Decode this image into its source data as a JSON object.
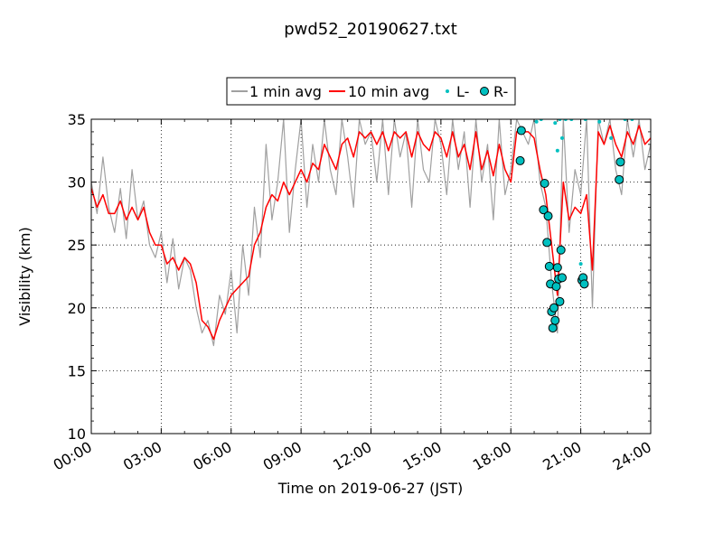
{
  "chart_data": {
    "type": "line",
    "title": "pwd52_20190627.txt",
    "xlabel": "Time on 2019-06-27 (JST)",
    "ylabel": "Visibility (km)",
    "xlim": [
      0,
      24
    ],
    "ylim": [
      10,
      35
    ],
    "x_ticks": [
      "00:00",
      "03:00",
      "06:00",
      "09:00",
      "12:00",
      "15:00",
      "18:00",
      "21:00",
      "24:00"
    ],
    "y_ticks": [
      "10",
      "15",
      "20",
      "25",
      "30",
      "35"
    ],
    "x_unit": "hours",
    "grid": true,
    "legend_position": "top-center",
    "legend": [
      "1 min avg",
      "10 min avg",
      "L-",
      "R-"
    ],
    "series": [
      {
        "name": "1 min avg",
        "color": "#a0a0a0",
        "kind": "line",
        "x": [
          0,
          0.25,
          0.5,
          0.75,
          1,
          1.25,
          1.5,
          1.75,
          2,
          2.25,
          2.5,
          2.75,
          3,
          3.25,
          3.5,
          3.75,
          4,
          4.25,
          4.5,
          4.75,
          5,
          5.25,
          5.5,
          5.75,
          6,
          6.25,
          6.5,
          6.75,
          7,
          7.25,
          7.5,
          7.75,
          8,
          8.25,
          8.5,
          8.75,
          9,
          9.25,
          9.5,
          9.75,
          10,
          10.25,
          10.5,
          10.75,
          11,
          11.25,
          11.5,
          11.75,
          12,
          12.25,
          12.5,
          12.75,
          13,
          13.25,
          13.5,
          13.75,
          14,
          14.25,
          14.5,
          14.75,
          15,
          15.25,
          15.5,
          15.75,
          16,
          16.25,
          16.5,
          16.75,
          17,
          17.25,
          17.5,
          17.75,
          18,
          18.25,
          18.5,
          18.75,
          19,
          19.25,
          19.5,
          19.75,
          20,
          20.25,
          20.5,
          20.75,
          21,
          21.25,
          21.5,
          21.75,
          22,
          22.25,
          22.5,
          22.75,
          23,
          23.25,
          23.5,
          23.75,
          24
        ],
        "values": [
          30,
          27.5,
          32,
          28,
          26,
          29.5,
          25.5,
          31,
          27,
          28.5,
          25,
          24,
          26,
          22,
          25.5,
          21.5,
          24,
          23,
          20,
          18,
          19,
          17,
          21,
          19.5,
          23,
          18,
          25,
          21,
          28,
          24,
          33,
          27,
          30,
          35,
          26,
          31,
          35,
          28,
          33,
          30,
          35,
          31,
          29,
          35,
          32,
          28,
          35,
          33,
          34,
          30,
          35,
          29,
          35,
          32,
          34,
          28,
          35,
          31,
          30,
          35,
          33,
          29,
          35,
          31,
          34,
          28,
          35,
          30,
          33,
          27,
          35,
          29,
          31,
          35,
          34,
          33,
          35,
          30,
          28,
          22,
          18,
          35,
          26,
          31,
          29,
          35,
          20,
          35,
          33,
          35,
          31,
          29,
          35,
          32,
          35,
          31,
          33
        ]
      },
      {
        "name": "10 min avg",
        "color": "#ff0000",
        "kind": "line",
        "x": [
          0,
          0.25,
          0.5,
          0.75,
          1,
          1.25,
          1.5,
          1.75,
          2,
          2.25,
          2.5,
          2.75,
          3,
          3.25,
          3.5,
          3.75,
          4,
          4.25,
          4.5,
          4.75,
          5,
          5.25,
          5.5,
          5.75,
          6,
          6.25,
          6.5,
          6.75,
          7,
          7.25,
          7.5,
          7.75,
          8,
          8.25,
          8.5,
          8.75,
          9,
          9.25,
          9.5,
          9.75,
          10,
          10.25,
          10.5,
          10.75,
          11,
          11.25,
          11.5,
          11.75,
          12,
          12.25,
          12.5,
          12.75,
          13,
          13.25,
          13.5,
          13.75,
          14,
          14.25,
          14.5,
          14.75,
          15,
          15.25,
          15.5,
          15.75,
          16,
          16.25,
          16.5,
          16.75,
          17,
          17.25,
          17.5,
          17.75,
          18,
          18.25,
          18.5,
          18.75,
          19,
          19.25,
          19.5,
          19.75,
          20,
          20.25,
          20.5,
          20.75,
          21,
          21.25,
          21.5,
          21.75,
          22,
          22.25,
          22.5,
          22.75,
          23,
          23.25,
          23.5,
          23.75,
          24
        ],
        "values": [
          29.5,
          28,
          29,
          27.5,
          27.5,
          28.5,
          27,
          28,
          27,
          28,
          26,
          25,
          25,
          23.5,
          24,
          23,
          24,
          23.5,
          22,
          19,
          18.5,
          17.5,
          19,
          20,
          21,
          21.5,
          22,
          22.5,
          25,
          26,
          28,
          29,
          28.5,
          30,
          29,
          30,
          31,
          30,
          31.5,
          31,
          33,
          32,
          31,
          33,
          33.5,
          32,
          34,
          33.5,
          34,
          33,
          34,
          32.5,
          34,
          33.5,
          34,
          32,
          34,
          33,
          32.5,
          34,
          33.5,
          32,
          34,
          32,
          33,
          31,
          34,
          31,
          32.5,
          30.5,
          33,
          31,
          30,
          34,
          34,
          34,
          33.5,
          31,
          29,
          25,
          21,
          30,
          27,
          28,
          27.5,
          29,
          23,
          34,
          33,
          34.5,
          33,
          32,
          34,
          33,
          34.5,
          33,
          33.5
        ]
      },
      {
        "name": "L-",
        "color": "#00c0c0",
        "kind": "dots",
        "x": [
          19.1,
          19.3,
          19.9,
          20.0,
          20.1,
          20.2,
          20.35,
          20.6,
          21.0,
          21.2,
          21.8,
          22.3,
          22.9,
          23.2
        ],
        "values": [
          34.8,
          35,
          34.7,
          32.5,
          35,
          33.5,
          35,
          35,
          23.5,
          35,
          34.8,
          33.5,
          35,
          35
        ]
      },
      {
        "name": "R-",
        "color": "#00c0c0",
        "kind": "circles",
        "x": [
          18.4,
          18.45,
          19.4,
          19.45,
          19.55,
          19.6,
          19.65,
          19.7,
          19.75,
          19.8,
          19.85,
          19.9,
          19.95,
          20.0,
          20.05,
          20.1,
          20.15,
          20.2,
          21.05,
          21.1,
          21.15,
          22.65,
          22.7
        ],
        "values": [
          31.7,
          34.1,
          27.8,
          29.9,
          25.2,
          27.3,
          23.3,
          21.9,
          19.7,
          18.4,
          20.0,
          19.0,
          21.7,
          23.2,
          22.3,
          20.5,
          24.6,
          22.4,
          22.2,
          22.4,
          21.9,
          30.2,
          31.6
        ]
      }
    ]
  }
}
